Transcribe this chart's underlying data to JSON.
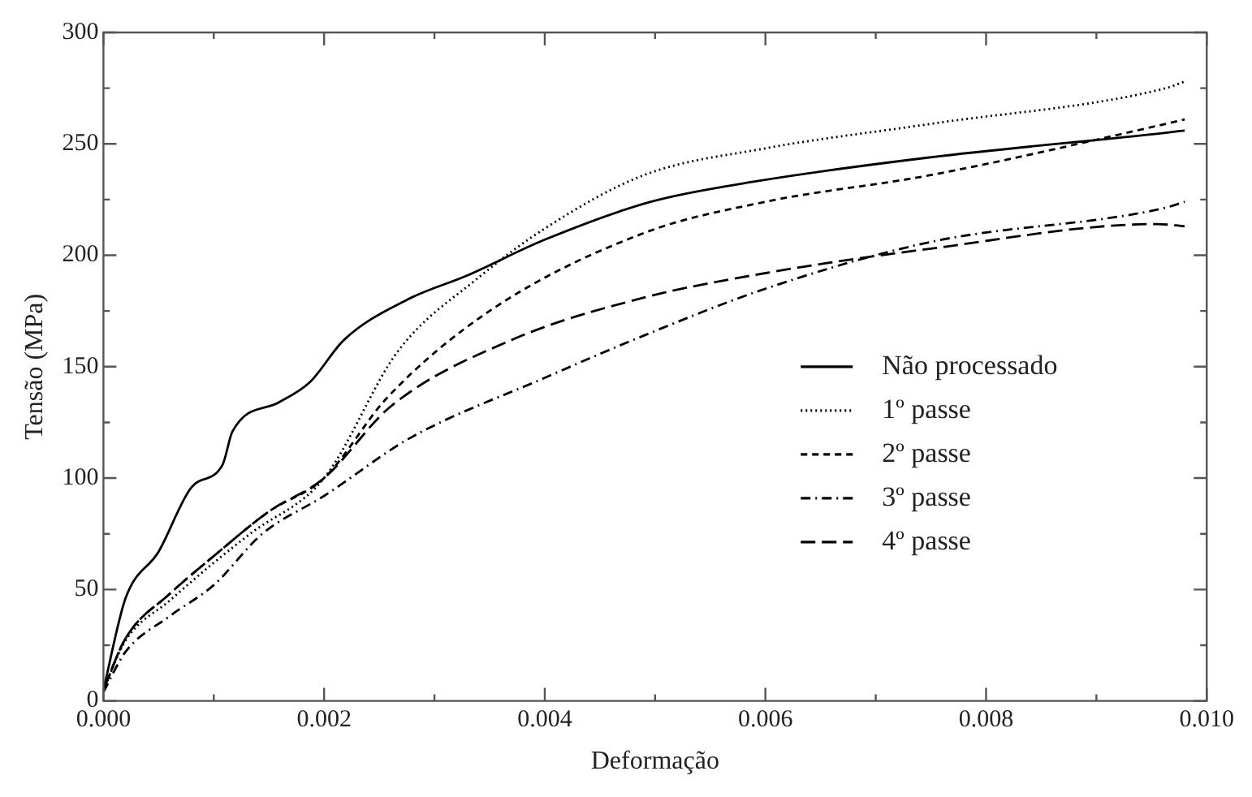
{
  "chart_data": {
    "type": "line",
    "xlabel": "Deformação",
    "ylabel": "Tensão (MPa)",
    "xlim": [
      0,
      0.01
    ],
    "ylim": [
      0,
      300
    ],
    "xticks": [
      {
        "value": 0,
        "label": "0.000"
      },
      {
        "value": 0.002,
        "label": "0.002"
      },
      {
        "value": 0.004,
        "label": "0.004"
      },
      {
        "value": 0.006,
        "label": "0.006"
      },
      {
        "value": 0.008,
        "label": "0.008"
      },
      {
        "value": 0.01,
        "label": "0.010"
      }
    ],
    "yticks": [
      0,
      50,
      100,
      150,
      200,
      250,
      300
    ],
    "grid": false,
    "legend": "right",
    "marker": "none",
    "series": [
      {
        "name": "Não processado",
        "color": "#000000",
        "line_style": "solid",
        "x": [
          0,
          0.0002,
          0.0005,
          0.0008,
          0.00108,
          0.00117,
          0.00159,
          0.00187,
          0.00218,
          0.00275,
          0.0033,
          0.004,
          0.00496,
          0.00589,
          0.0075,
          0.00963,
          0.0098
        ],
        "values": [
          5,
          46,
          67,
          96,
          106,
          121,
          134,
          143,
          162,
          180,
          191,
          207,
          224,
          233,
          244,
          255,
          256
        ]
      },
      {
        "name": "1º passe",
        "color": "#000000",
        "line_style": "dotted",
        "x": [
          0,
          0.0002,
          0.0006,
          0.001,
          0.00133,
          0.002,
          0.00267,
          0.0034,
          0.004,
          0.0049,
          0.006,
          0.0075,
          0.00963,
          0.0098
        ],
        "values": [
          5,
          27,
          45,
          62,
          75,
          100,
          157,
          190,
          212,
          236,
          248,
          259,
          275,
          278
        ]
      },
      {
        "name": "2º passe",
        "color": "#000000",
        "line_style": "dashed",
        "x": [
          0,
          0.0002,
          0.0006,
          0.001,
          0.0015,
          0.002,
          0.00257,
          0.0035,
          0.0049,
          0.006,
          0.0075,
          0.00963,
          0.0098
        ],
        "values": [
          5,
          28,
          48,
          65,
          85,
          100,
          136,
          175,
          210,
          224,
          236,
          259,
          261
        ]
      },
      {
        "name": "3º passe",
        "color": "#000000",
        "line_style": "dashdot",
        "x": [
          0,
          0.0002,
          0.0006,
          0.001,
          0.00144,
          0.002,
          0.00278,
          0.004,
          0.0049,
          0.006,
          0.0075,
          0.0096,
          0.0098
        ],
        "values": [
          4,
          22,
          38,
          52,
          75,
          92,
          118,
          145,
          164,
          185,
          206,
          221,
          224
        ]
      },
      {
        "name": "4º passe",
        "color": "#000000",
        "line_style": "longdash",
        "x": [
          0,
          0.0002,
          0.0006,
          0.001,
          0.0015,
          0.002,
          0.0026,
          0.0037,
          0.0049,
          0.006,
          0.0075,
          0.00955,
          0.0098
        ],
        "values": [
          5,
          28,
          48,
          65,
          85,
          100,
          132,
          162,
          181,
          192,
          203,
          214,
          213
        ]
      }
    ]
  }
}
